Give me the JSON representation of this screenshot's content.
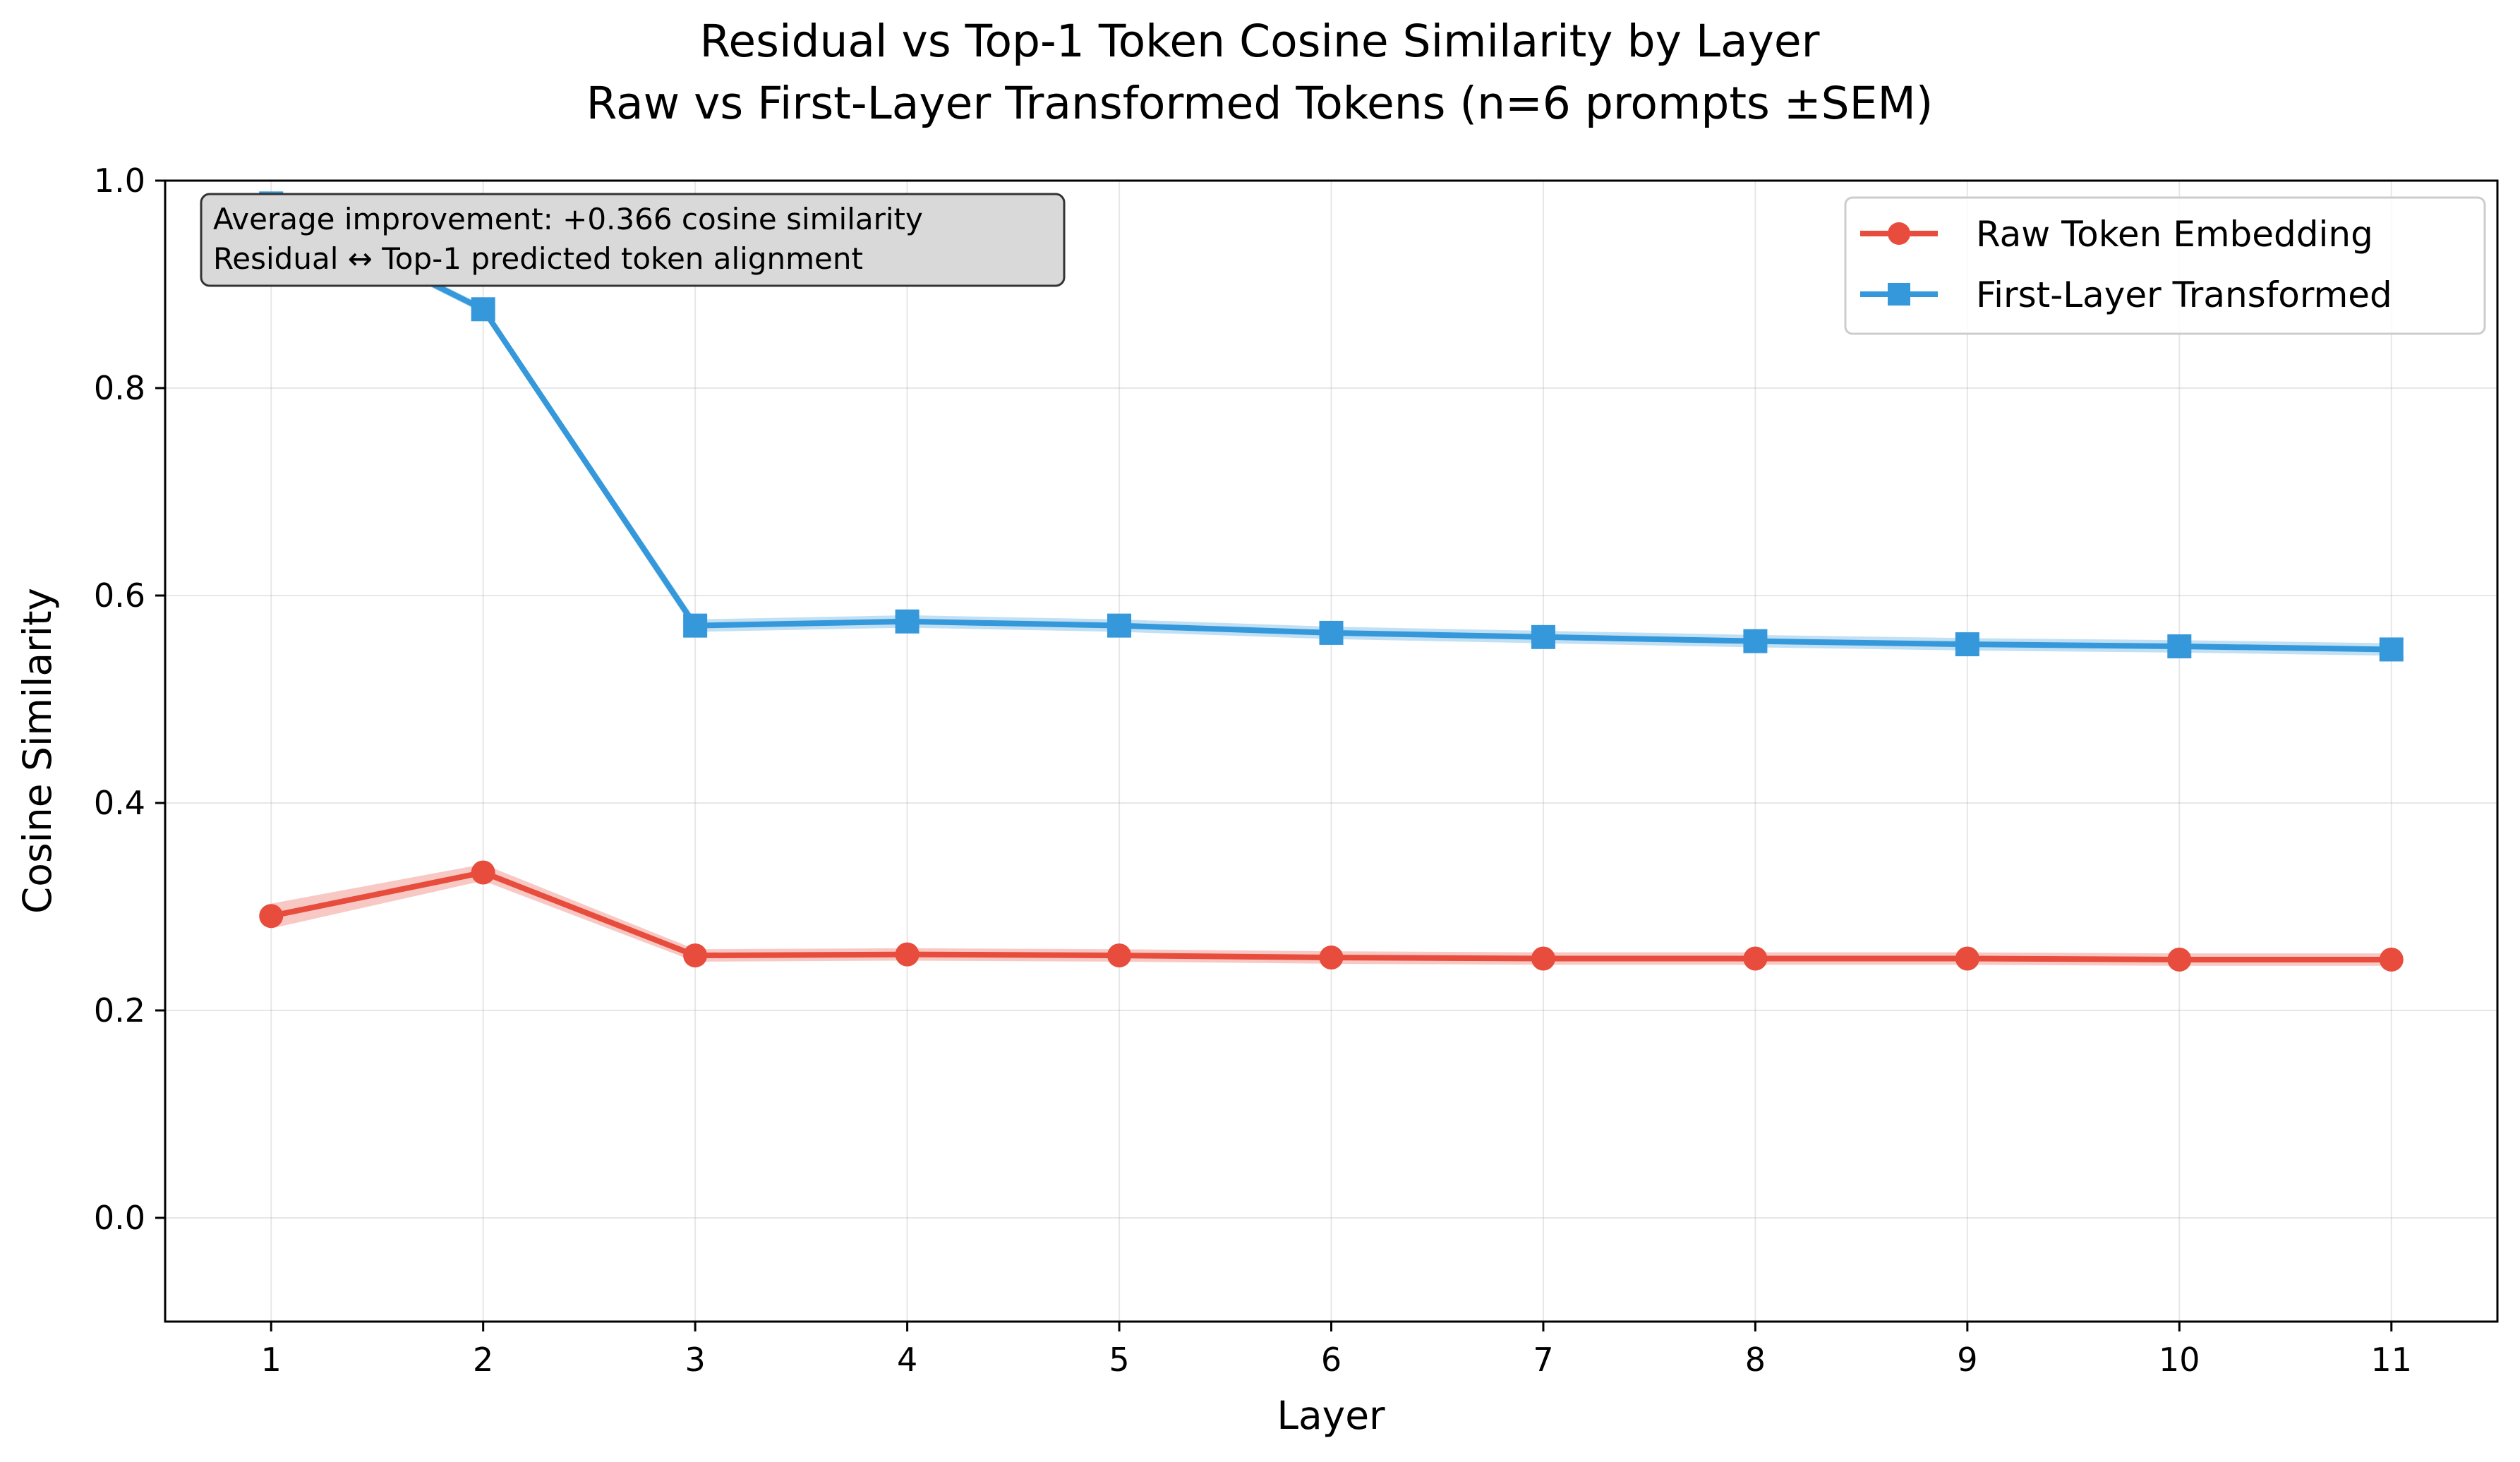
{
  "chart_data": {
    "type": "line",
    "title": "Residual vs Top-1 Token Cosine Similarity by Layer",
    "subtitle": "Raw vs First-Layer Transformed Tokens (n=6 prompts ±SEM)",
    "xlabel": "Layer",
    "ylabel": "Cosine Similarity",
    "x": [
      1,
      2,
      3,
      4,
      5,
      6,
      7,
      8,
      9,
      10,
      11
    ],
    "xlim": [
      0.5,
      11.5
    ],
    "ylim": [
      -0.1,
      1.0
    ],
    "yticks": [
      0.0,
      0.2,
      0.4,
      0.6,
      0.8,
      1.0
    ],
    "ytick_labels": [
      "0.0",
      "0.2",
      "0.4",
      "0.6",
      "0.8",
      "1.0"
    ],
    "xtick_labels": [
      "1",
      "2",
      "3",
      "4",
      "5",
      "6",
      "7",
      "8",
      "9",
      "10",
      "11"
    ],
    "grid": true,
    "legend_position": "top-right",
    "series": [
      {
        "name": "Raw Token Embedding",
        "color": "#e74c3c",
        "marker": "circle",
        "values": [
          0.291,
          0.333,
          0.253,
          0.254,
          0.253,
          0.251,
          0.25,
          0.25,
          0.25,
          0.249,
          0.249
        ],
        "sem": [
          0.012,
          0.008,
          0.006,
          0.006,
          0.006,
          0.006,
          0.006,
          0.006,
          0.006,
          0.006,
          0.006
        ]
      },
      {
        "name": "First-Layer Transformed",
        "color": "#3498db",
        "marker": "square",
        "values": [
          0.978,
          0.876,
          0.571,
          0.575,
          0.571,
          0.564,
          0.56,
          0.556,
          0.553,
          0.551,
          0.548
        ],
        "sem": [
          0.003,
          0.004,
          0.006,
          0.006,
          0.006,
          0.006,
          0.006,
          0.006,
          0.006,
          0.006,
          0.006
        ]
      }
    ],
    "annotation": {
      "lines": [
        "Average improvement: +0.366 cosine similarity",
        "Residual ↔ Top-1 predicted token alignment"
      ]
    }
  }
}
